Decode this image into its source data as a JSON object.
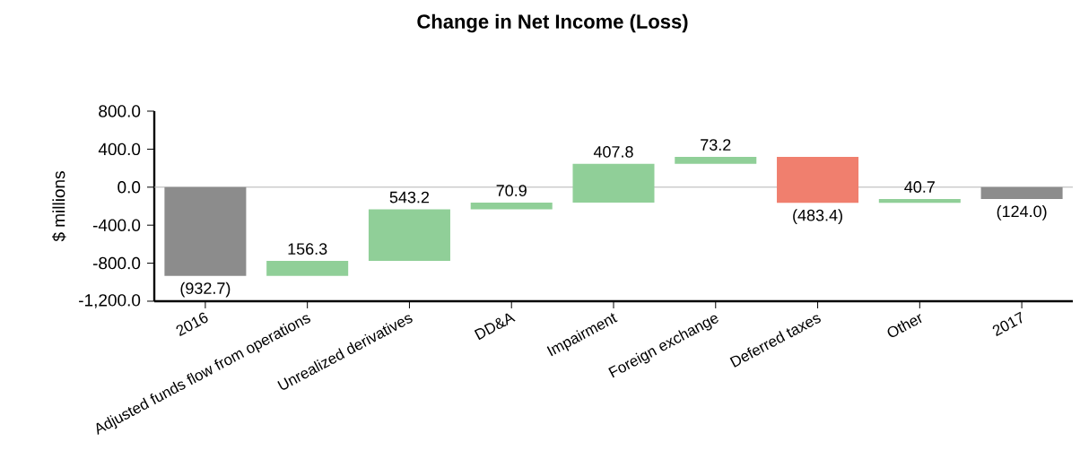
{
  "chart_data": {
    "type": "bar",
    "title": "Change in Net Income (Loss)",
    "ylabel": "$ millions",
    "categories": [
      "2016",
      "Adjusted funds flow from operations",
      "Unrealized derivatives",
      "DD&A",
      "Impairment",
      "Foreign exchange",
      "Deferred taxes",
      "Other",
      "2017"
    ],
    "values": [
      -932.7,
      156.3,
      543.2,
      70.9,
      407.8,
      73.2,
      -483.4,
      40.7,
      -124.0
    ],
    "base": [
      0,
      -932.7,
      -776.4,
      -233.2,
      -162.3,
      245.5,
      318.7,
      -164.7,
      0
    ],
    "colors": [
      "#8c8c8c",
      "#90cf98",
      "#90cf98",
      "#90cf98",
      "#90cf98",
      "#90cf98",
      "#f07f6e",
      "#90cf98",
      "#8c8c8c"
    ],
    "value_labels": [
      "(932.7)",
      "156.3",
      "543.2",
      "70.9",
      "407.8",
      "73.2",
      "(483.4)",
      "40.7",
      "(124.0)"
    ],
    "ylim": [
      -1200,
      800
    ],
    "yticks": [
      {
        "value": -1200,
        "label": "-1,200.0"
      },
      {
        "value": -800,
        "label": "-800.0"
      },
      {
        "value": -400,
        "label": "-400.0"
      },
      {
        "value": 0,
        "label": "0.0"
      },
      {
        "value": 400,
        "label": "400.0"
      },
      {
        "value": 800,
        "label": "800.0"
      }
    ],
    "ref_lines": [
      {
        "axis": "y",
        "value": 0,
        "color": "#b4b4b4"
      }
    ]
  }
}
